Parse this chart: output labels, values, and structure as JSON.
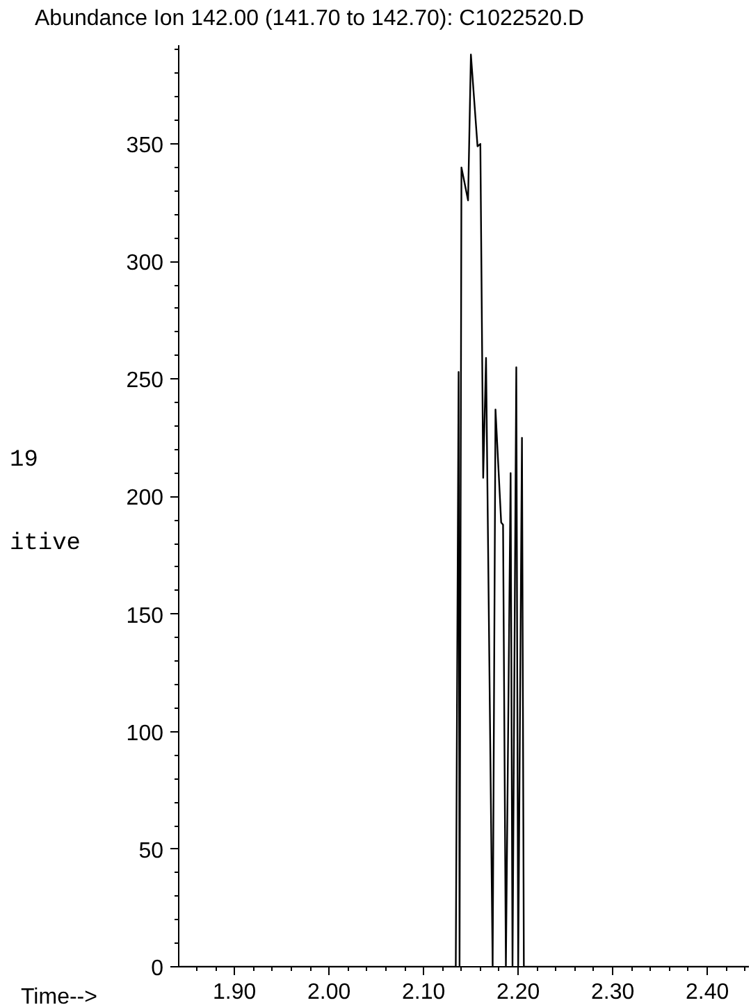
{
  "chart_data": {
    "type": "line",
    "title": "Abundance  Ion 142.00 (141.70 to 142.70): C1022520.D",
    "xlabel": "Time-->",
    "annotations": [
      "19",
      "itive"
    ],
    "x": [
      1.841,
      2.134,
      2.137,
      2.138,
      2.14,
      2.147,
      2.15,
      2.157,
      2.16,
      2.163,
      2.166,
      2.173,
      2.176,
      2.182,
      2.184,
      2.187,
      2.192,
      2.194,
      2.198,
      2.2,
      2.204,
      2.206,
      2.444
    ],
    "series": [
      {
        "color": "#000000",
        "values": [
          0,
          0,
          253,
          0,
          340,
          326,
          388,
          349,
          350,
          208,
          259,
          0,
          237,
          189,
          188,
          0,
          210,
          0,
          255,
          0,
          225,
          0,
          0
        ]
      }
    ],
    "xlim": [
      1.841,
      2.444
    ],
    "ylim": [
      0,
      392
    ],
    "xticks": [
      {
        "value": 1.9,
        "label": "1.90"
      },
      {
        "value": 2.0,
        "label": "2.00"
      },
      {
        "value": 2.1,
        "label": "2.10"
      },
      {
        "value": 2.2,
        "label": "2.20"
      },
      {
        "value": 2.3,
        "label": "2.30"
      },
      {
        "value": 2.4,
        "label": "2.40"
      }
    ],
    "yticks": [
      0,
      50,
      100,
      150,
      200,
      250,
      300,
      350
    ],
    "grid": false,
    "marker": "none",
    "line_style": "solid"
  }
}
